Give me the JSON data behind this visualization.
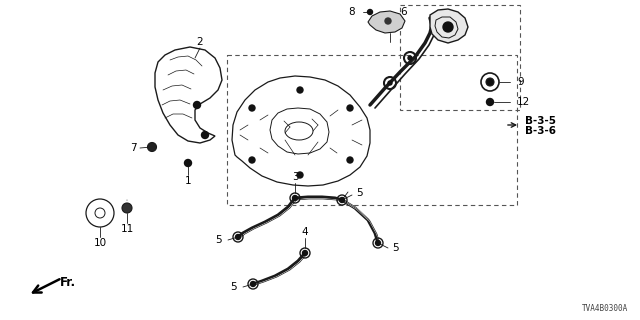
{
  "bg_color": "#ffffff",
  "line_color": "#1a1a1a",
  "text_color": "#000000",
  "diagram_code": "TVA4B0300A",
  "fig_width": 6.4,
  "fig_height": 3.2,
  "dpi": 100
}
